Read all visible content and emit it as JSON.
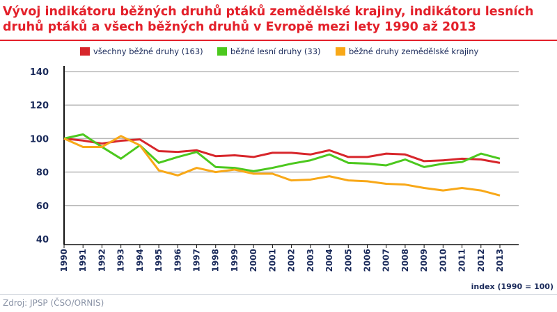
{
  "chart_data": {
    "type": "line",
    "title": "Vývoj indikátoru běžných druhů ptáků zemědělské krajiny, indikátoru lesních druhů ptáků a všech běžných druhů v Evropě mezi lety 1990 až 2013",
    "x": [
      1990,
      1991,
      1992,
      1993,
      1994,
      1995,
      1996,
      1997,
      1998,
      1999,
      2000,
      2001,
      2002,
      2003,
      2004,
      2005,
      2006,
      2007,
      2008,
      2009,
      2010,
      2011,
      2012,
      2013
    ],
    "series": [
      {
        "name": "všechny běžné druhy (163)",
        "color": "#d7262b",
        "values": [
          100,
          98.8,
          97,
          98.7,
          99.5,
          92.5,
          92,
          93,
          89.5,
          90,
          89,
          91.5,
          91.5,
          90.5,
          93,
          89,
          89,
          91,
          90.5,
          86.5,
          87,
          88,
          87.5,
          85.5
        ]
      },
      {
        "name": "běžné lesní druhy (33)",
        "color": "#4cc81e",
        "values": [
          100,
          102.5,
          95,
          88,
          96,
          85.5,
          89,
          92,
          83,
          82.5,
          80.5,
          82.5,
          85,
          87,
          90.5,
          85.5,
          85,
          84,
          87.5,
          83,
          85,
          86,
          91,
          88
        ]
      },
      {
        "name": "běžné druhy zemědělské krajiny",
        "color": "#f8a818",
        "values": [
          100,
          95,
          95,
          101.5,
          96,
          81,
          78,
          82.5,
          80,
          81.5,
          79,
          79,
          75,
          75.5,
          77.5,
          75,
          74.5,
          73,
          72.5,
          70.5,
          69,
          70.5,
          69,
          66
        ]
      }
    ],
    "yticks": [
      40,
      60,
      80,
      100,
      120,
      140
    ],
    "ylim": [
      40,
      140
    ],
    "grid": "horizontal",
    "legend": "top",
    "note": "index (1990 = 100)"
  },
  "source": "Zdroj: JPSP (ČSO/ORNIS)"
}
